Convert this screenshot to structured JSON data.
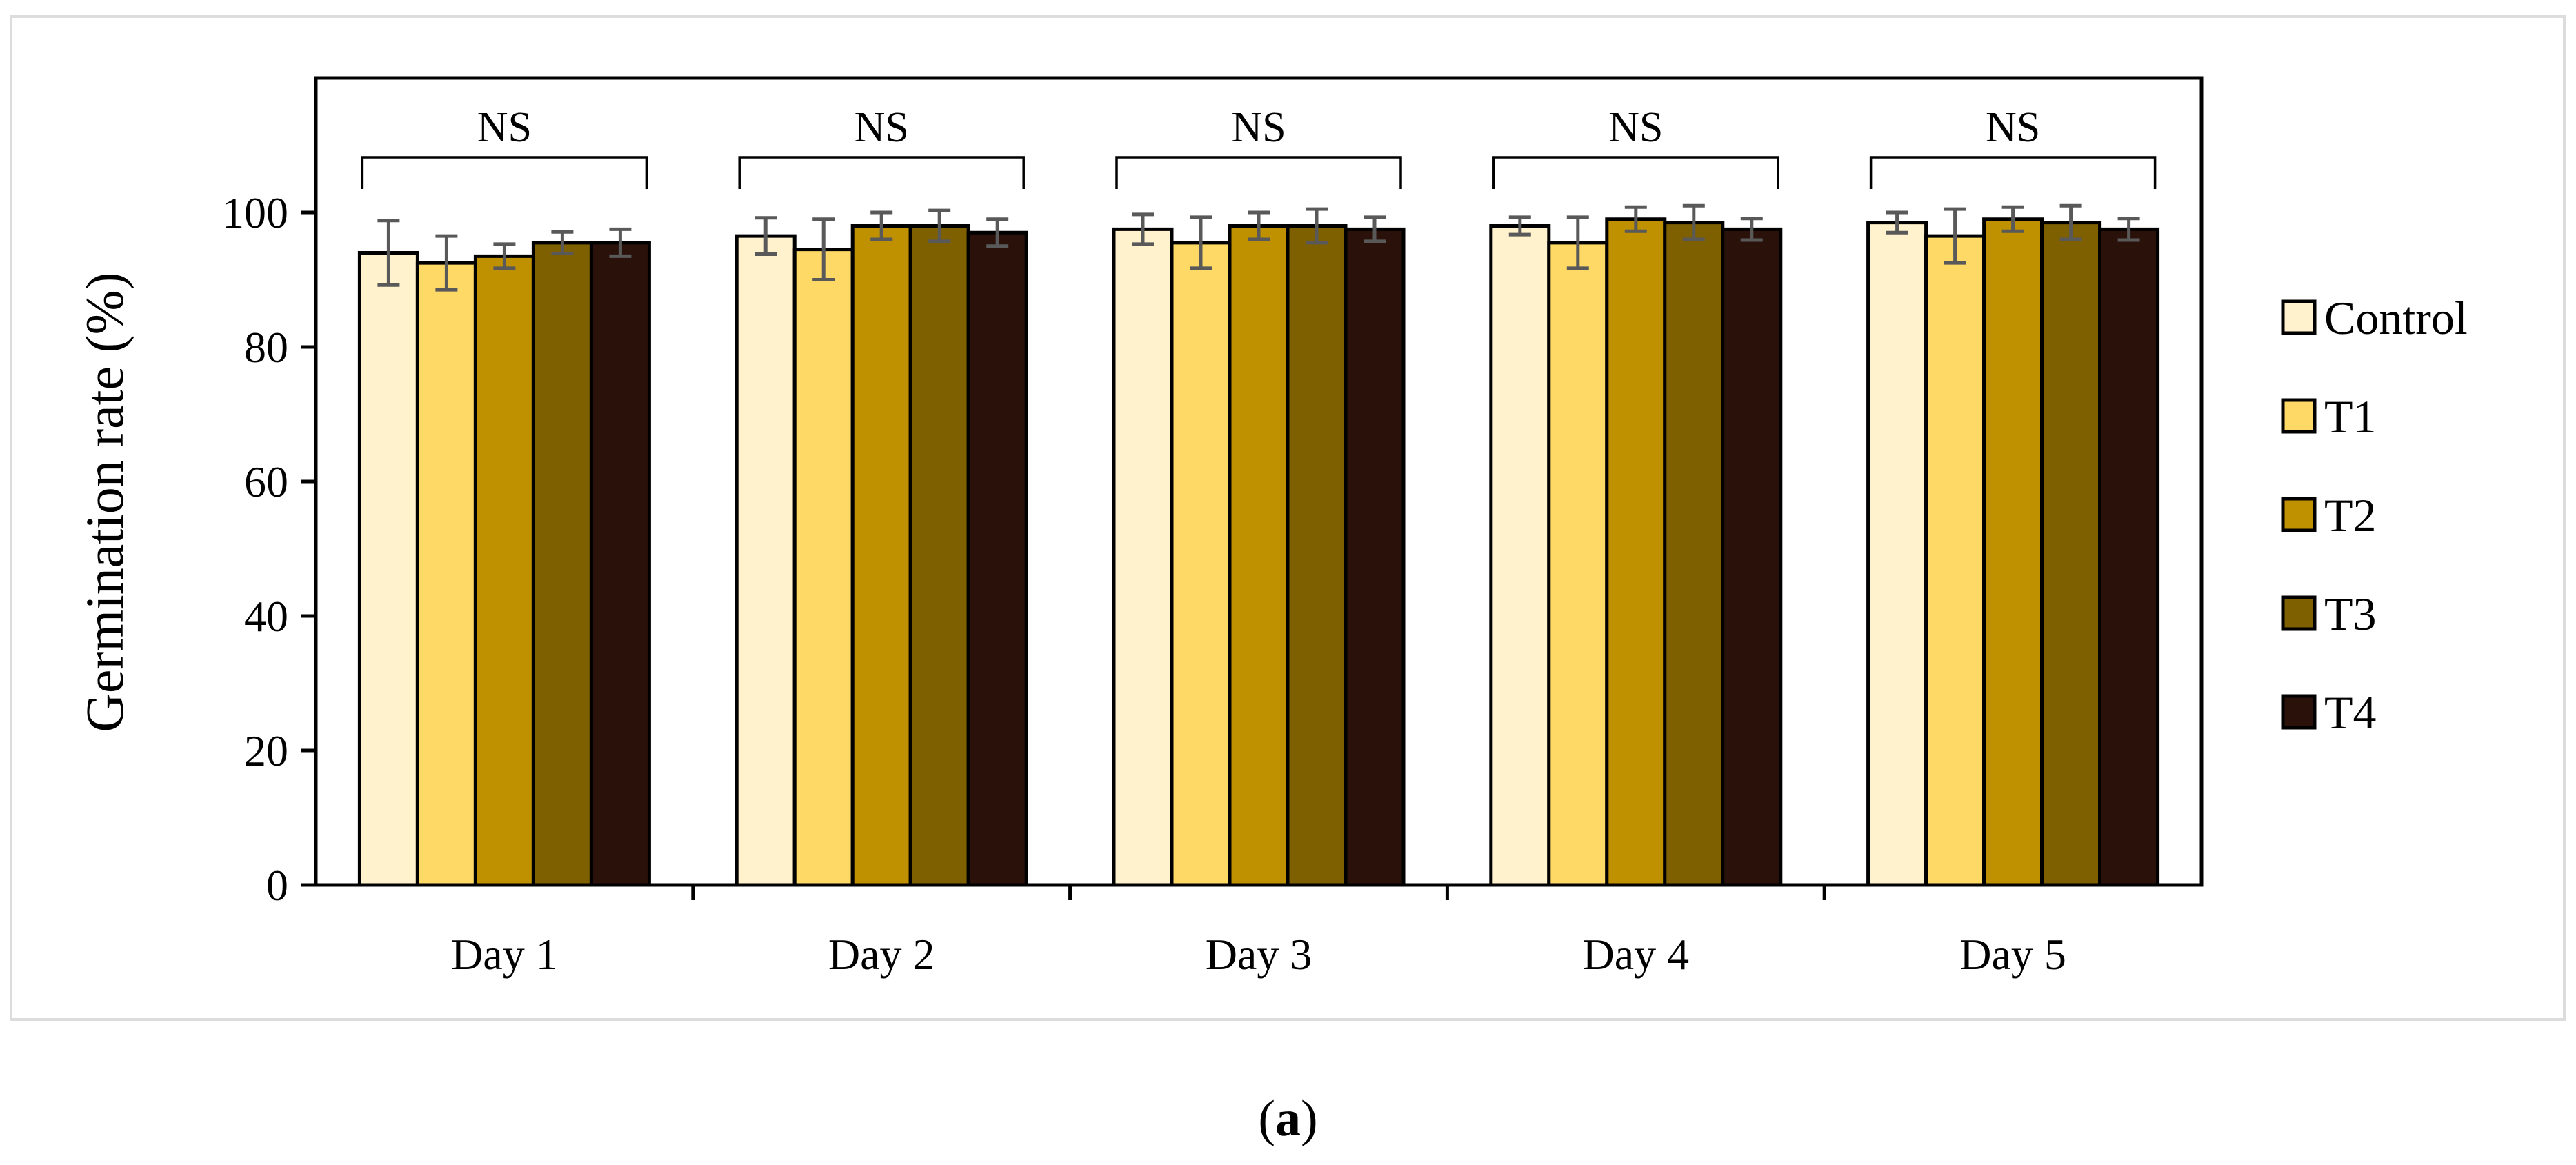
{
  "caption": {
    "open": "(",
    "label": "a",
    "close": ")"
  },
  "chart_data": {
    "type": "bar",
    "title": "",
    "xlabel": "",
    "ylabel": "Germination rate (%)",
    "ylim": [
      0,
      120
    ],
    "yticks": [
      0,
      20,
      40,
      60,
      80,
      100
    ],
    "categories": [
      "Day 1",
      "Day 2",
      "Day 3",
      "Day 4",
      "Day 5"
    ],
    "series": [
      {
        "name": "Control",
        "color": "#FFF2CC",
        "values": [
          94,
          96.5,
          97.5,
          98,
          98.5
        ],
        "errors": [
          4.8,
          2.7,
          2.2,
          1.3,
          1.5
        ]
      },
      {
        "name": "T1",
        "color": "#FFD966",
        "values": [
          92.5,
          94.5,
          95.5,
          95.5,
          96.5
        ],
        "errors": [
          4.0,
          4.5,
          3.8,
          3.8,
          4.0
        ]
      },
      {
        "name": "T2",
        "color": "#BF9000",
        "values": [
          93.5,
          98,
          98,
          99,
          99
        ],
        "errors": [
          1.8,
          2.0,
          2.0,
          1.8,
          1.8
        ]
      },
      {
        "name": "T3",
        "color": "#7F6000",
        "values": [
          95.5,
          98,
          98,
          98.5,
          98.5
        ],
        "errors": [
          1.6,
          2.3,
          2.5,
          2.5,
          2.5
        ]
      },
      {
        "name": "T4",
        "color": "#2A120A",
        "values": [
          95.5,
          97,
          97.5,
          97.5,
          97.5
        ],
        "errors": [
          2.0,
          2.0,
          1.8,
          1.6,
          1.6
        ]
      }
    ],
    "annotations": [
      "NS",
      "NS",
      "NS",
      "NS",
      "NS"
    ],
    "legend_position": "right",
    "grid": false
  }
}
